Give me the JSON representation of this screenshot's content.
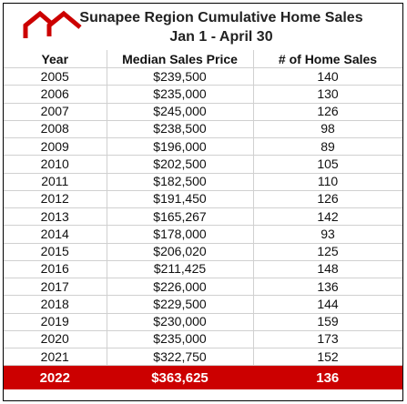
{
  "header": {
    "title": "Sunapee Region Cumulative Home Sales",
    "subtitle": "Jan 1 - April 30",
    "logo_icon": "house-roof-logo-icon",
    "logo_color": "#cc0000"
  },
  "chart_data": {
    "type": "table",
    "title": "Sunapee Region Cumulative Home Sales",
    "subtitle": "Jan 1 - April 30",
    "columns": [
      "Year",
      "Median Sales Price",
      "# of Home Sales"
    ],
    "rows": [
      [
        "2005",
        "$239,500",
        "140"
      ],
      [
        "2006",
        "$235,000",
        "130"
      ],
      [
        "2007",
        "$245,000",
        "126"
      ],
      [
        "2008",
        "$238,500",
        "98"
      ],
      [
        "2009",
        "$196,000",
        "89"
      ],
      [
        "2010",
        "$202,500",
        "105"
      ],
      [
        "2011",
        "$182,500",
        "110"
      ],
      [
        "2012",
        "$191,450",
        "126"
      ],
      [
        "2013",
        "$165,267",
        "142"
      ],
      [
        "2014",
        "$178,000",
        "93"
      ],
      [
        "2015",
        "$206,020",
        "125"
      ],
      [
        "2016",
        "$211,425",
        "148"
      ],
      [
        "2017",
        "$226,000",
        "136"
      ],
      [
        "2018",
        "$229,500",
        "144"
      ],
      [
        "2019",
        "$230,000",
        "159"
      ],
      [
        "2020",
        "$235,000",
        "173"
      ],
      [
        "2021",
        "$322,750",
        "152"
      ],
      [
        "2022",
        "$363,625",
        "136"
      ]
    ],
    "highlight_row": "2022",
    "highlight_color": "#cc0000"
  }
}
